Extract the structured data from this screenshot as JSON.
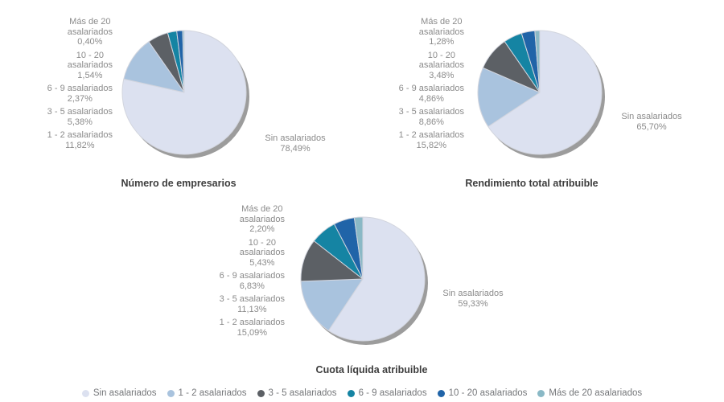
{
  "panel_background": "#ffffff",
  "series_colors": {
    "Sin asalariados": "#dce1f0",
    "1 - 2 asalariados": "#a9c3de",
    "3 - 5 asalariados": "#5c6065",
    "6 - 9 asalariados": "#1584a3",
    "10 - 20 asalariados": "#2064a8",
    "Más de 20 asalariados": "#8ab9c6"
  },
  "shadow_color": "#9c9c9c",
  "slice_border_color": "#d2d5de",
  "category_label_lines": {
    "Sin asalariados": [
      "Sin asalariados"
    ],
    "1 - 2 asalariados": [
      "1 - 2 asalariados"
    ],
    "3 - 5 asalariados": [
      "3 - 5 asalariados"
    ],
    "6 - 9 asalariados": [
      "6 - 9 asalariados"
    ],
    "10 - 20 asalariados": [
      "10 - 20",
      "asalariados"
    ],
    "Más de 20 asalariados": [
      "Más de 20",
      "asalariados"
    ]
  },
  "chart_data": [
    {
      "type": "pie",
      "title": "Número de empresarios",
      "categories": [
        "Sin asalariados",
        "1 - 2 asalariados",
        "3 - 5 asalariados",
        "6 - 9 asalariados",
        "10 - 20 asalariados",
        "Más de 20 asalariados"
      ],
      "values": [
        78.49,
        11.82,
        5.38,
        2.37,
        1.54,
        0.4
      ],
      "value_labels": [
        "78,49%",
        "11,82%",
        "5,38%",
        "2,37%",
        "1,54%",
        "0,40%"
      ],
      "start_angle_deg": 0,
      "direction": "clockwise",
      "legend_position": "bottom-shared"
    },
    {
      "type": "pie",
      "title": "Rendimiento total atribuible",
      "categories": [
        "Sin asalariados",
        "1 - 2 asalariados",
        "3 - 5 asalariados",
        "6 - 9 asalariados",
        "10 - 20 asalariados",
        "Más de 20 asalariados"
      ],
      "values": [
        65.7,
        15.82,
        8.86,
        4.86,
        3.48,
        1.28
      ],
      "value_labels": [
        "65,70%",
        "15,82%",
        "8,86%",
        "4,86%",
        "3,48%",
        "1,28%"
      ],
      "start_angle_deg": 0,
      "direction": "clockwise",
      "legend_position": "bottom-shared"
    },
    {
      "type": "pie",
      "title": "Cuota líquida atribuible",
      "categories": [
        "Sin asalariados",
        "1 - 2 asalariados",
        "3 - 5 asalariados",
        "6 - 9 asalariados",
        "10 - 20 asalariados",
        "Más de 20 asalariados"
      ],
      "values": [
        59.33,
        15.09,
        11.13,
        6.83,
        5.43,
        2.2
      ],
      "value_labels": [
        "59,33%",
        "15,09%",
        "11,13%",
        "6,83%",
        "5,43%",
        "2,20%"
      ],
      "start_angle_deg": 0,
      "direction": "clockwise",
      "legend_position": "bottom-shared"
    }
  ],
  "legend": {
    "items": [
      {
        "label": "Sin asalariados",
        "color": "#dce1f0"
      },
      {
        "label": "1 - 2 asalariados",
        "color": "#a9c3de"
      },
      {
        "label": "3 - 5 asalariados",
        "color": "#5c6065"
      },
      {
        "label": "6 - 9 asalariados",
        "color": "#1584a3"
      },
      {
        "label": "10 - 20 asalariados",
        "color": "#2064a8"
      },
      {
        "label": "Más de 20 asalariados",
        "color": "#8ab9c6"
      }
    ]
  }
}
